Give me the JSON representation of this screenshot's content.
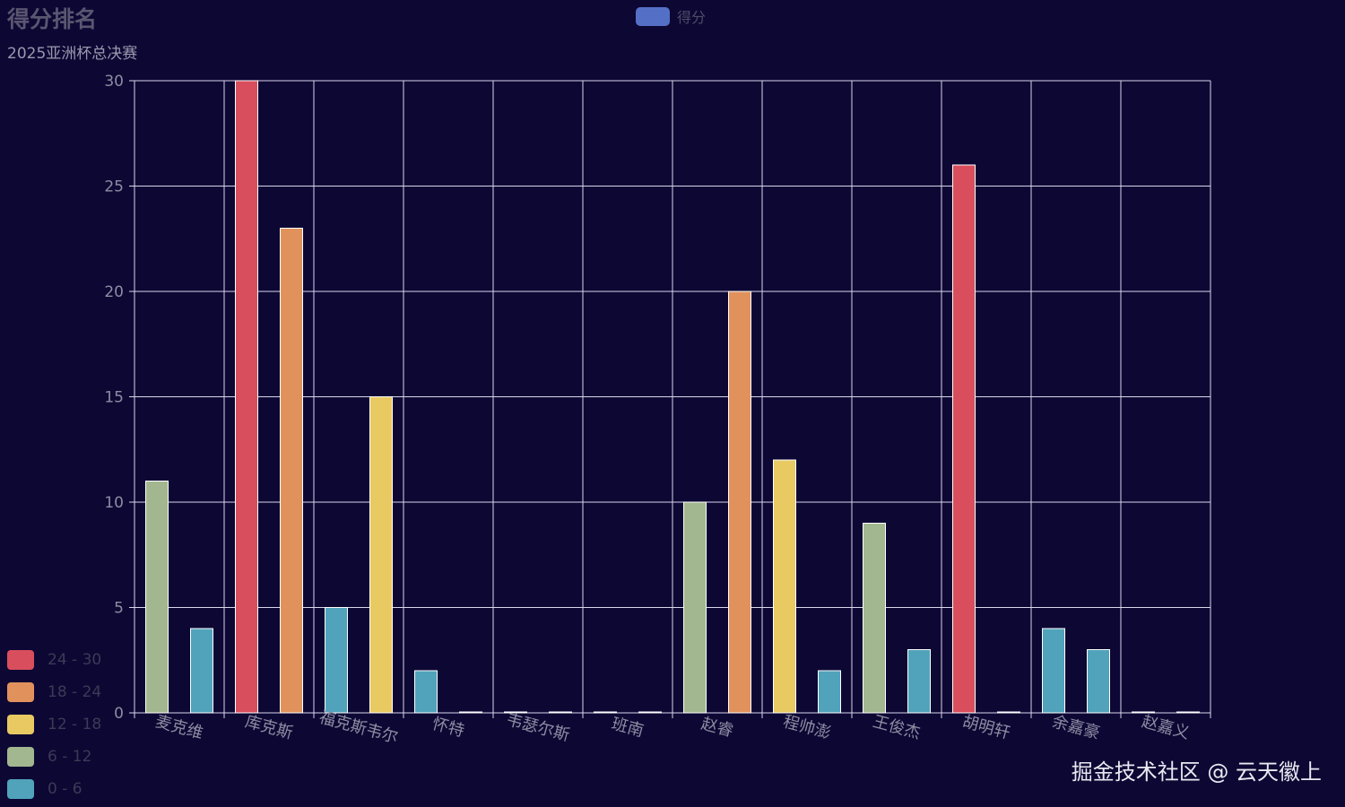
{
  "header": {
    "title": "得分排名",
    "subtitle": "2025亚洲杯总决赛",
    "legend_label": "得分",
    "legend_color": "#5470c6"
  },
  "watermark": "掘金技术社区 @ 云天徽上",
  "visual_map": [
    {
      "label": "24 - 30",
      "color": "#d94e5d"
    },
    {
      "label": "18 - 24",
      "color": "#e1925c"
    },
    {
      "label": "12 - 18",
      "color": "#e8c962"
    },
    {
      "label": "6 - 12",
      "color": "#a2b78f"
    },
    {
      "label": "0 - 6",
      "color": "#50a3ba"
    }
  ],
  "chart_data": {
    "type": "bar",
    "categories": [
      "麦克维",
      "库克斯",
      "福克斯韦尔",
      "怀特",
      "韦瑟尔斯",
      "班南",
      "赵睿",
      "程帅澎",
      "王俊杰",
      "胡明轩",
      "余嘉豪",
      "赵嘉义"
    ],
    "series": [
      {
        "values": [
          11,
          30,
          5,
          2,
          0,
          0,
          10,
          12,
          9,
          26,
          4,
          0
        ]
      },
      {
        "values": [
          4,
          23,
          15,
          0,
          0,
          0,
          20,
          2,
          3,
          0,
          3,
          0
        ]
      }
    ],
    "ylim": [
      0,
      30
    ],
    "yticks": [
      0,
      5,
      10,
      15,
      20,
      25,
      30
    ],
    "grid": true,
    "legend_position": "top-center",
    "visual_map_position": "bottom-left"
  }
}
